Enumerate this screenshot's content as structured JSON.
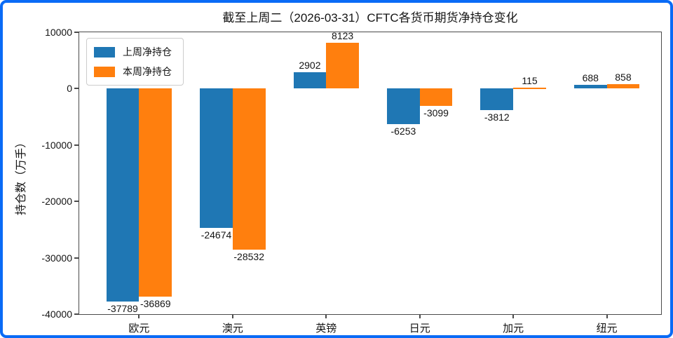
{
  "window": {
    "border_color": "#0a6bf6",
    "background": "#ffffff"
  },
  "chart_data": {
    "type": "bar",
    "title": "截至上周二（2026-03-31）CFTC各货币期货净持仓变化",
    "xlabel": "",
    "ylabel": "持仓数（万手）",
    "categories": [
      "欧元",
      "澳元",
      "英镑",
      "日元",
      "加元",
      "纽元"
    ],
    "series": [
      {
        "name": "上周净持仓",
        "color": "#1f77b4",
        "values": [
          -37789,
          -24674,
          2902,
          -6253,
          -3812,
          688
        ]
      },
      {
        "name": "本周净持仓",
        "color": "#ff7f0e",
        "values": [
          -36869,
          -28532,
          8123,
          -3099,
          115,
          858
        ]
      }
    ],
    "ylim": [
      -40000,
      10000
    ],
    "yticks": [
      10000,
      0,
      -10000,
      -20000,
      -30000,
      -40000
    ],
    "xlim": [
      -0.64,
      5.58
    ],
    "bar_width": 0.35,
    "legend_position": "upper left",
    "grid": false,
    "bar_labels": true,
    "axis_color": "#4a4a4a"
  }
}
